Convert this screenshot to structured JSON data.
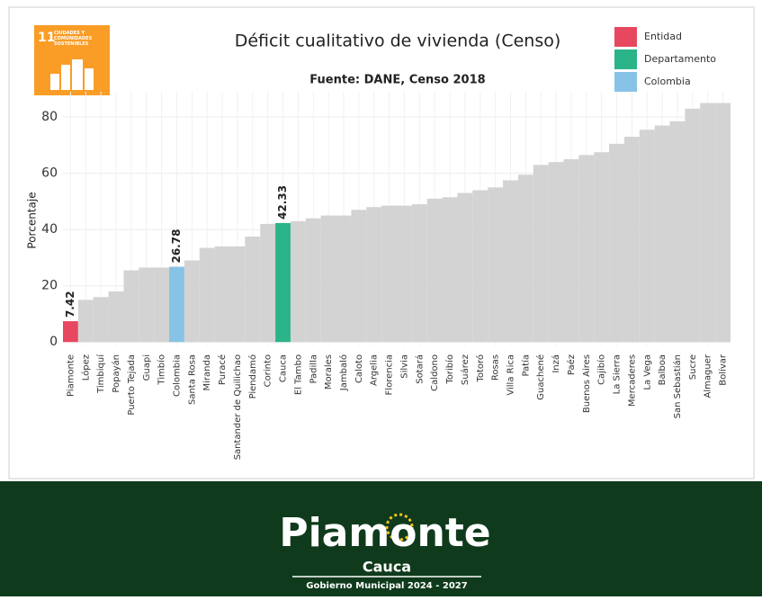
{
  "chart_data": {
    "type": "bar",
    "title": "Déficit cualitativo de vivienda (Censo)",
    "subtitle": "Fuente: DANE, Censo 2018",
    "y_label": "Porcentaje",
    "categories": [
      "Piamonte",
      "López",
      "Timbiquí",
      "Popayán",
      "Puerto Tejada",
      "Guapi",
      "Timbío",
      "Colombia",
      "Santa Rosa",
      "Miranda",
      "Puracé",
      "Santander de Quilichao",
      "Piendamó",
      "Corinto",
      "Cauca",
      "El Tambo",
      "Padilla",
      "Morales",
      "Jambaló",
      "Caloto",
      "Argelia",
      "Florencia",
      "Silvia",
      "Sotará",
      "Caldono",
      "Toribío",
      "Suárez",
      "Totoró",
      "Rosas",
      "Villa Rica",
      "Patía",
      "Guachené",
      "Inzá",
      "Paéz",
      "Buenos Aires",
      "Cajibío",
      "La Sierra",
      "Mercaderes",
      "La Vega",
      "Balboa",
      "San Sebastián",
      "Sucre",
      "Almaguer",
      "Bolívar"
    ],
    "values": [
      7.42,
      15,
      16,
      18,
      25.5,
      26.5,
      26.5,
      26.78,
      29,
      33.5,
      34,
      34,
      37.5,
      42,
      42.33,
      43,
      44,
      45,
      45,
      47,
      48,
      48.5,
      48.5,
      49,
      51,
      51.5,
      53,
      54,
      55,
      57.5,
      59.5,
      63,
      64,
      65,
      66.5,
      67.5,
      70.5,
      73,
      75.5,
      77,
      78.5,
      83,
      85,
      85
    ],
    "color": "#d3d3d3",
    "colors": [
      "#e8485f",
      "#d3d3d3",
      "#d3d3d3",
      "#d3d3d3",
      "#d3d3d3",
      "#d3d3d3",
      "#d3d3d3",
      "#87c3e6",
      "#d3d3d3",
      "#d3d3d3",
      "#d3d3d3",
      "#d3d3d3",
      "#d3d3d3",
      "#d3d3d3",
      "#2bb38a",
      "#d3d3d3",
      "#d3d3d3",
      "#d3d3d3",
      "#d3d3d3",
      "#d3d3d3",
      "#d3d3d3",
      "#d3d3d3",
      "#d3d3d3",
      "#d3d3d3",
      "#d3d3d3",
      "#d3d3d3",
      "#d3d3d3",
      "#d3d3d3",
      "#d3d3d3",
      "#d3d3d3",
      "#d3d3d3",
      "#d3d3d3",
      "#d3d3d3",
      "#d3d3d3",
      "#d3d3d3",
      "#d3d3d3",
      "#d3d3d3",
      "#d3d3d3",
      "#d3d3d3",
      "#d3d3d3",
      "#d3d3d3",
      "#d3d3d3",
      "#d3d3d3",
      "#d3d3d3"
    ],
    "legend": [
      {
        "name": "Entidad",
        "color": "#e8485f"
      },
      {
        "name": "Departamento",
        "color": "#2bb38a"
      },
      {
        "name": "Colombia",
        "color": "#87c3e6"
      }
    ],
    "ylim": [
      -1.2,
      89
    ],
    "yticks": [
      0,
      20,
      40,
      60,
      80
    ],
    "grid": true
  },
  "sdg": {
    "number": "11",
    "text": "CIUDADES Y COMUNIDADES SOSTENIBLES"
  },
  "footer": {
    "name": "Piamonte",
    "region": "Cauca",
    "tagline": "Gobierno Municipal 2024 - 2027"
  }
}
